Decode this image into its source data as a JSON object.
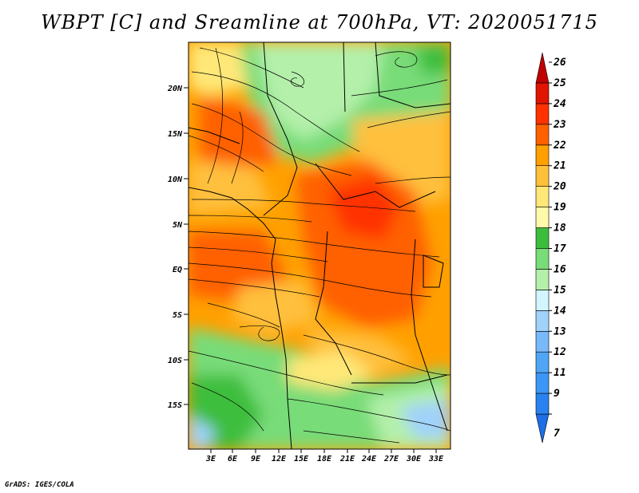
{
  "title": "WBPT [C] and Sreamline at 700hPa, VT: 2020051715",
  "footer": "GrADS: IGES/COLA",
  "map": {
    "lat_labels": [
      "20N",
      "15N",
      "10N",
      "5N",
      "EQ",
      "5S",
      "10S",
      "15S"
    ],
    "lon_labels": [
      "3E",
      "6E",
      "9E",
      "12E",
      "15E",
      "18E",
      "21E",
      "24E",
      "27E",
      "30E",
      "33E"
    ]
  },
  "colorbar": {
    "levels": [
      "7",
      "9",
      "11",
      "12",
      "13",
      "14",
      "15",
      "16",
      "17",
      "18",
      "19",
      "20",
      "21",
      "22",
      "23",
      "24",
      "25",
      "26"
    ],
    "colors": [
      "#1e6ee6",
      "#2a82f0",
      "#3c96f5",
      "#50a5f5",
      "#78b9fa",
      "#a0d2fa",
      "#d2f5ff",
      "#b4f0aa",
      "#78dc78",
      "#3cbe3c",
      "#fffaaa",
      "#ffe878",
      "#ffc03c",
      "#ffa000",
      "#ff6000",
      "#ff3200",
      "#e11400",
      "#c00000"
    ]
  }
}
